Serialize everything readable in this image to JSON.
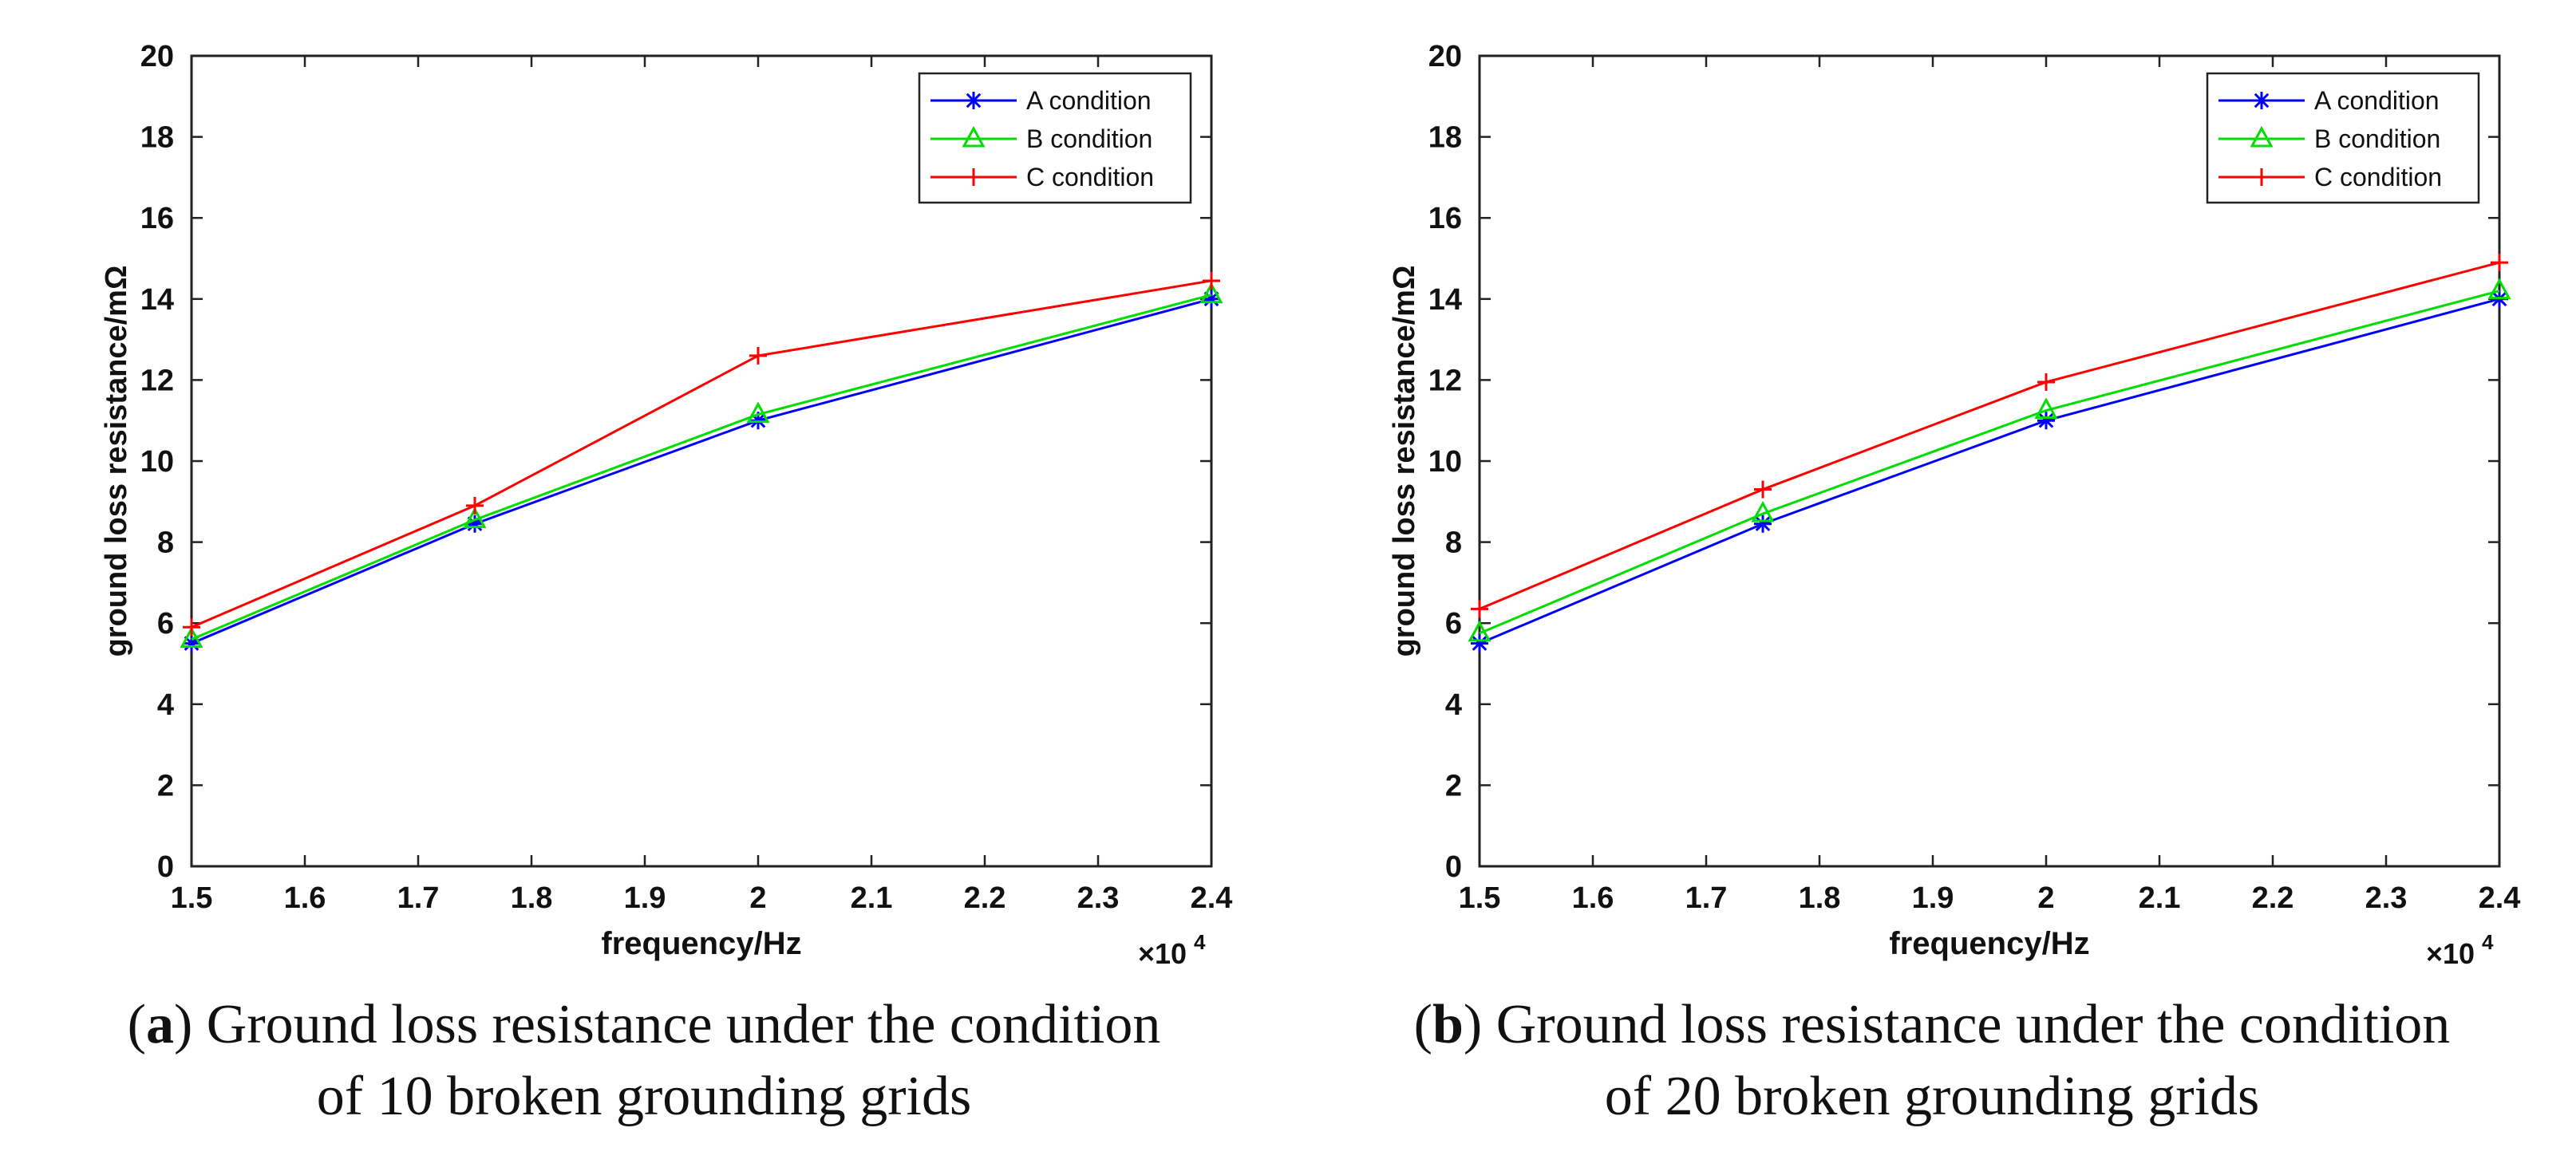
{
  "chart_data": [
    {
      "type": "line",
      "caption": {
        "tag": "a",
        "text": "Ground loss resistance under the condition",
        "text2": "of 10 broken grounding grids"
      },
      "xlabel": "frequency/Hz",
      "ylabel": "ground loss resistance/mΩ",
      "x_multiplier": "×10",
      "x_multiplier_exp": "4",
      "xlim": [
        1.5,
        2.4
      ],
      "ylim": [
        0,
        20
      ],
      "xticks": [
        "1.5",
        "1.6",
        "1.7",
        "1.8",
        "1.9",
        "2",
        "2.1",
        "2.2",
        "2.3",
        "2.4"
      ],
      "yticks": [
        "0",
        "2",
        "4",
        "6",
        "8",
        "10",
        "12",
        "14",
        "16",
        "18",
        "20"
      ],
      "grid": false,
      "legend_position": "top-right",
      "x": [
        1.5,
        1.75,
        2.0,
        2.4
      ],
      "series": [
        {
          "name": "A condition",
          "color": "#0000ff",
          "marker": "asterisk",
          "values": [
            5.5,
            8.45,
            11.0,
            14.0
          ]
        },
        {
          "name": "B condition",
          "color": "#00dd00",
          "marker": "triangle",
          "values": [
            5.6,
            8.55,
            11.15,
            14.1
          ]
        },
        {
          "name": "C condition",
          "color": "#ff0000",
          "marker": "plus",
          "values": [
            5.9,
            8.9,
            12.6,
            14.45
          ]
        }
      ]
    },
    {
      "type": "line",
      "caption": {
        "tag": "b",
        "text": "Ground loss resistance under the condition",
        "text2": "of 20 broken grounding grids"
      },
      "xlabel": "frequency/Hz",
      "ylabel": "ground loss resistance/mΩ",
      "x_multiplier": "×10",
      "x_multiplier_exp": "4",
      "xlim": [
        1.5,
        2.4
      ],
      "ylim": [
        0,
        20
      ],
      "xticks": [
        "1.5",
        "1.6",
        "1.7",
        "1.8",
        "1.9",
        "2",
        "2.1",
        "2.2",
        "2.3",
        "2.4"
      ],
      "yticks": [
        "0",
        "2",
        "4",
        "6",
        "8",
        "10",
        "12",
        "14",
        "16",
        "18",
        "20"
      ],
      "grid": false,
      "legend_position": "top-right",
      "x": [
        1.5,
        1.75,
        2.0,
        2.4
      ],
      "series": [
        {
          "name": "A condition",
          "color": "#0000ff",
          "marker": "asterisk",
          "values": [
            5.5,
            8.45,
            11.0,
            14.0
          ]
        },
        {
          "name": "B condition",
          "color": "#00dd00",
          "marker": "triangle",
          "values": [
            5.75,
            8.7,
            11.25,
            14.2
          ]
        },
        {
          "name": "C condition",
          "color": "#ff0000",
          "marker": "plus",
          "values": [
            6.35,
            9.3,
            11.95,
            14.9
          ]
        }
      ]
    }
  ]
}
